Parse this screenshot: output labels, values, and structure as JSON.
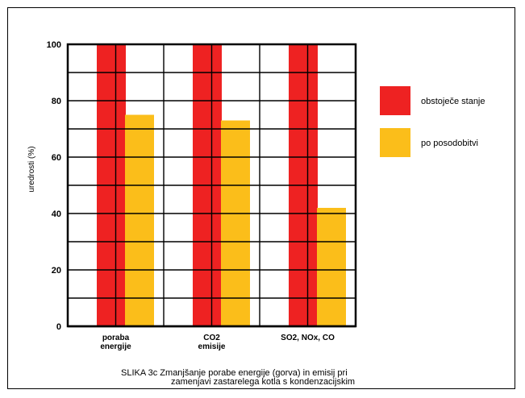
{
  "chart_data": {
    "type": "bar",
    "title": "",
    "xlabel": "",
    "ylabel": "uredrosti (%)",
    "ylim": [
      0,
      100
    ],
    "yticks": [
      0,
      20,
      40,
      60,
      80,
      100
    ],
    "grid": true,
    "legend_position": "right",
    "categories": [
      [
        "poraba",
        "energije"
      ],
      [
        "CO2",
        "emisije"
      ],
      [
        "SO2, NOx, CO"
      ]
    ],
    "series": [
      {
        "name": "obstoječe stanje",
        "color": "#ee2222",
        "values": [
          100,
          100,
          100
        ]
      },
      {
        "name": "po posodobitvi",
        "color": "#fbbe1a",
        "values": [
          75,
          73,
          42
        ]
      }
    ]
  },
  "caption": {
    "line1": "SLIKA 3c Zmanjšanje porabe energije (gorva) in emisij pri",
    "line2": "zamenjavi zastarelega kotla s kondenzacijskim"
  }
}
